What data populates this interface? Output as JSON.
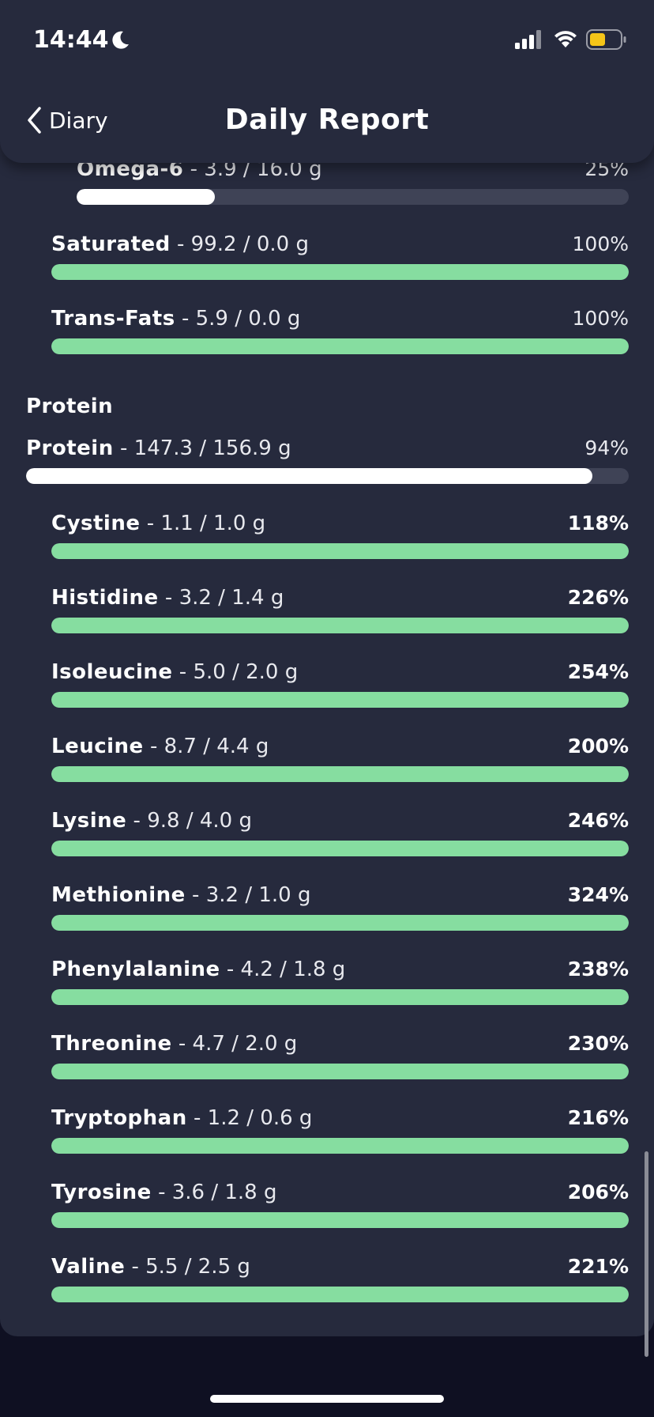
{
  "status_bar": {
    "time": "14:44",
    "icons": [
      "moon-icon",
      "cellular-signal-icon",
      "wifi-icon",
      "battery-low-icon"
    ]
  },
  "header": {
    "back_label": "Diary",
    "title": "Daily Report"
  },
  "fats": [
    {
      "name": "Omega-6",
      "amount": " - 3.9 / 16.0 g",
      "percent": "25%",
      "progress": 0.25,
      "bar": "white",
      "bold_pct": false
    },
    {
      "name": "Saturated",
      "amount": " - 99.2 / 0.0 g",
      "percent": "100%",
      "progress": 1.0,
      "bar": "green",
      "bold_pct": false
    },
    {
      "name": "Trans-Fats",
      "amount": " - 5.9 / 0.0 g",
      "percent": "100%",
      "progress": 1.0,
      "bar": "green",
      "bold_pct": false
    }
  ],
  "protein_section": {
    "title": "Protein",
    "total": {
      "name": "Protein",
      "amount": " - 147.3 / 156.9 g",
      "percent": "94%",
      "progress": 0.94,
      "bar": "white",
      "bold_pct": false
    },
    "amino_acids": [
      {
        "name": "Cystine",
        "amount": " - 1.1 / 1.0 g",
        "percent": "118%",
        "progress": 1.0,
        "bar": "green",
        "bold_pct": true
      },
      {
        "name": "Histidine",
        "amount": " - 3.2 / 1.4 g",
        "percent": "226%",
        "progress": 1.0,
        "bar": "green",
        "bold_pct": true
      },
      {
        "name": "Isoleucine",
        "amount": " - 5.0 / 2.0 g",
        "percent": "254%",
        "progress": 1.0,
        "bar": "green",
        "bold_pct": true
      },
      {
        "name": "Leucine",
        "amount": " - 8.7 / 4.4 g",
        "percent": "200%",
        "progress": 1.0,
        "bar": "green",
        "bold_pct": true
      },
      {
        "name": "Lysine",
        "amount": " - 9.8 / 4.0 g",
        "percent": "246%",
        "progress": 1.0,
        "bar": "green",
        "bold_pct": true
      },
      {
        "name": "Methionine",
        "amount": " - 3.2 / 1.0 g",
        "percent": "324%",
        "progress": 1.0,
        "bar": "green",
        "bold_pct": true
      },
      {
        "name": "Phenylalanine",
        "amount": " - 4.2 / 1.8 g",
        "percent": "238%",
        "progress": 1.0,
        "bar": "green",
        "bold_pct": true
      },
      {
        "name": "Threonine",
        "amount": " - 4.7 / 2.0 g",
        "percent": "230%",
        "progress": 1.0,
        "bar": "green",
        "bold_pct": true
      },
      {
        "name": "Tryptophan",
        "amount": " - 1.2 / 0.6 g",
        "percent": "216%",
        "progress": 1.0,
        "bar": "green",
        "bold_pct": true
      },
      {
        "name": "Tyrosine",
        "amount": " - 3.6 / 1.8 g",
        "percent": "206%",
        "progress": 1.0,
        "bar": "green",
        "bold_pct": true
      },
      {
        "name": "Valine",
        "amount": " - 5.5 / 2.5 g",
        "percent": "221%",
        "progress": 1.0,
        "bar": "green",
        "bold_pct": true
      }
    ]
  },
  "colors": {
    "background": "#262a3d",
    "track": "#3f4356",
    "green": "#86dda0",
    "white": "#ffffff",
    "battery": "#f5c518"
  }
}
